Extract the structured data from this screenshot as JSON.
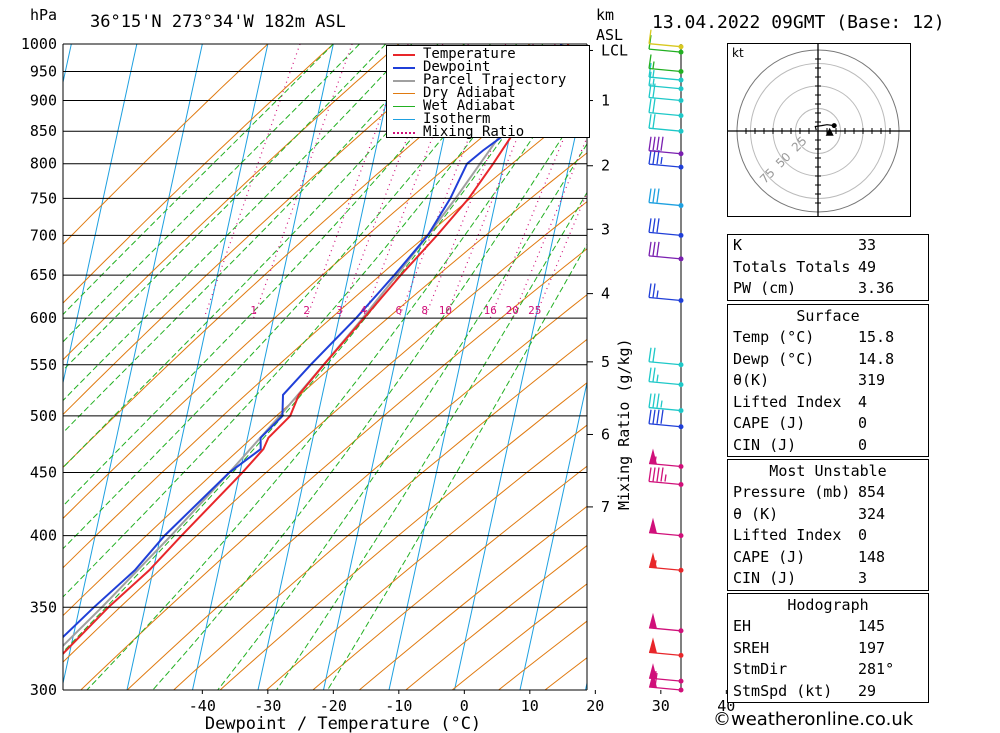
{
  "header": {
    "unit_hpa": "hPa",
    "location": "36°15'N  273°34'W  182m  ASL",
    "unit_km": "km",
    "unit_asl": "ASL",
    "datetime": "13.04.2022  09GMT  (Base: 12)"
  },
  "colors": {
    "temperature": "#e8262a",
    "dewpoint": "#1f3fd8",
    "parcel": "#a0a0a0",
    "dry_adiabat": "#e07a10",
    "wet_adiabat": "#22b022",
    "isotherm": "#1ea0e0",
    "mixing_ratio": "#d0107a"
  },
  "legend": {
    "items": [
      {
        "label": "Temperature",
        "color": "#e8262a",
        "style": "solid"
      },
      {
        "label": "Dewpoint",
        "color": "#1f3fd8",
        "style": "solid"
      },
      {
        "label": "Parcel Trajectory",
        "color": "#a0a0a0",
        "style": "solid"
      },
      {
        "label": "Dry Adiabat",
        "color": "#e07a10",
        "style": "solid"
      },
      {
        "label": "Wet Adiabat",
        "color": "#22b022",
        "style": "solid"
      },
      {
        "label": "Isotherm",
        "color": "#1ea0e0",
        "style": "solid"
      },
      {
        "label": "Mixing Ratio",
        "color": "#d0107a",
        "style": "dotted"
      }
    ]
  },
  "chart_data": {
    "type": "line",
    "xlabel": "Dewpoint / Temperature (°C)",
    "x_ticks": [
      -40,
      -30,
      -20,
      -10,
      0,
      10,
      20,
      30,
      40
    ],
    "pressure_levels": [
      300,
      350,
      400,
      450,
      500,
      550,
      600,
      650,
      700,
      750,
      800,
      850,
      900,
      950,
      1000
    ],
    "xlim": [
      -40,
      40
    ],
    "ylim": [
      1000,
      300
    ],
    "km_ticks": [
      {
        "km": "1",
        "p": 900
      },
      {
        "km": "2",
        "p": 797
      },
      {
        "km": "3",
        "p": 708
      },
      {
        "km": "4",
        "p": 628
      },
      {
        "km": "5",
        "p": 553
      },
      {
        "km": "6",
        "p": 483
      },
      {
        "km": "7",
        "p": 422
      },
      {
        "km": "LCL",
        "p": 988
      }
    ],
    "secondary_ylabel": "Mixing Ratio (g/kg)",
    "mixing_ratio_labels": [
      "1",
      "2",
      "3",
      "4",
      "6",
      "8",
      "10",
      "16",
      "20",
      "25"
    ],
    "series": [
      {
        "name": "Temperature",
        "p": [
          1000,
          985,
          950,
          900,
          850,
          800,
          750,
          700,
          650,
          600,
          550,
          520,
          500,
          480,
          470,
          450,
          400,
          375,
          350,
          300
        ],
        "t": [
          15.8,
          16.4,
          14.6,
          12.8,
          10.6,
          8.4,
          5.8,
          2.2,
          -2.0,
          -6.2,
          -10.8,
          -13.6,
          -14.2,
          -16.8,
          -17.2,
          -19.6,
          -26.8,
          -30.6,
          -35.6,
          -45.2
        ]
      },
      {
        "name": "Dewpoint",
        "p": [
          1000,
          985,
          950,
          900,
          850,
          820,
          800,
          750,
          700,
          650,
          600,
          550,
          520,
          500,
          480,
          470,
          450,
          400,
          375,
          350,
          300
        ],
        "t": [
          14.8,
          14.6,
          13.8,
          12.0,
          9.8,
          6.4,
          4.4,
          3.0,
          0.8,
          -3.0,
          -7.4,
          -12.8,
          -16.0,
          -15.4,
          -18.0,
          -17.6,
          -21.6,
          -29.4,
          -32.8,
          -37.8,
          -48.2
        ]
      },
      {
        "name": "Parcel Trajectory",
        "p": [
          1000,
          988,
          950,
          900,
          850,
          800,
          750,
          700,
          650,
          600,
          550,
          500,
          450,
          400,
          350,
          300
        ],
        "t": [
          15.0,
          14.8,
          13.2,
          11.0,
          8.8,
          6.4,
          3.8,
          0.8,
          -2.6,
          -6.4,
          -10.8,
          -15.8,
          -21.6,
          -28.4,
          -36.6,
          -46.6
        ]
      }
    ],
    "wind_barbs": [
      {
        "p": 300,
        "speed": 60,
        "color": "#d0107a"
      },
      {
        "p": 305,
        "speed": 55,
        "color": "#d0107a"
      },
      {
        "p": 320,
        "speed": 50,
        "color": "#e8262a"
      },
      {
        "p": 335,
        "speed": 50,
        "color": "#d0107a"
      },
      {
        "p": 375,
        "speed": 55,
        "color": "#e8262a"
      },
      {
        "p": 400,
        "speed": 50,
        "color": "#d0107a"
      },
      {
        "p": 440,
        "speed": 45,
        "color": "#d0107a"
      },
      {
        "p": 455,
        "speed": 55,
        "color": "#d0107a"
      },
      {
        "p": 490,
        "speed": 40,
        "color": "#1f3fd8"
      },
      {
        "p": 505,
        "speed": 35,
        "color": "#1ec8c8"
      },
      {
        "p": 530,
        "speed": 25,
        "color": "#1ec8c8"
      },
      {
        "p": 550,
        "speed": 20,
        "color": "#1ec8c8"
      },
      {
        "p": 620,
        "speed": 25,
        "color": "#1f3fd8"
      },
      {
        "p": 670,
        "speed": 30,
        "color": "#7a1fb0"
      },
      {
        "p": 700,
        "speed": 30,
        "color": "#1f3fd8"
      },
      {
        "p": 740,
        "speed": 30,
        "color": "#1ea0e0"
      },
      {
        "p": 795,
        "speed": 35,
        "color": "#1f3fd8"
      },
      {
        "p": 815,
        "speed": 40,
        "color": "#7a1fb0"
      },
      {
        "p": 850,
        "speed": 20,
        "color": "#1ec8c8"
      },
      {
        "p": 875,
        "speed": 20,
        "color": "#1ec8c8"
      },
      {
        "p": 900,
        "speed": 20,
        "color": "#1ec8c8"
      },
      {
        "p": 920,
        "speed": 15,
        "color": "#1ec8c8"
      },
      {
        "p": 935,
        "speed": 15,
        "color": "#1ec8c8"
      },
      {
        "p": 950,
        "speed": 15,
        "color": "#22b022"
      },
      {
        "p": 985,
        "speed": 10,
        "color": "#22b022"
      },
      {
        "p": 995,
        "speed": 10,
        "color": "#d8c820"
      }
    ]
  },
  "hodograph": {
    "unit": "kt",
    "ring_labels": [
      "25",
      "50",
      "75"
    ],
    "trace_kt": [
      [
        -2,
        1
      ],
      [
        -3,
        5
      ],
      [
        4,
        6
      ],
      [
        10,
        7
      ],
      [
        18,
        6
      ]
    ],
    "storm_motion_kt": [
      13,
      -2
    ]
  },
  "indices": {
    "basic": [
      {
        "label": "K",
        "value": "33"
      },
      {
        "label": "Totals Totals",
        "value": "49"
      },
      {
        "label": "PW (cm)",
        "value": "3.36"
      }
    ],
    "surface_title": "Surface",
    "surface": [
      {
        "label": "Temp (°C)",
        "value": "15.8"
      },
      {
        "label": "Dewp (°C)",
        "value": "14.8"
      },
      {
        "label": "θ(K)",
        "value": "319"
      },
      {
        "label": "Lifted Index",
        "value": "4"
      },
      {
        "label": "CAPE (J)",
        "value": "0"
      },
      {
        "label": "CIN (J)",
        "value": "0"
      }
    ],
    "mu_title": "Most Unstable",
    "mu": [
      {
        "label": "Pressure (mb)",
        "value": "854"
      },
      {
        "label": "θ (K)",
        "value": "324"
      },
      {
        "label": "Lifted Index",
        "value": "0"
      },
      {
        "label": "CAPE (J)",
        "value": "148"
      },
      {
        "label": "CIN (J)",
        "value": "3"
      }
    ],
    "hodo_title": "Hodograph",
    "hodo": [
      {
        "label": "EH",
        "value": "145"
      },
      {
        "label": "SREH",
        "value": "197"
      },
      {
        "label": "StmDir",
        "value": "281°"
      },
      {
        "label": "StmSpd (kt)",
        "value": "29"
      }
    ]
  },
  "footer": {
    "copyright": "©weatheronline.co.uk"
  }
}
